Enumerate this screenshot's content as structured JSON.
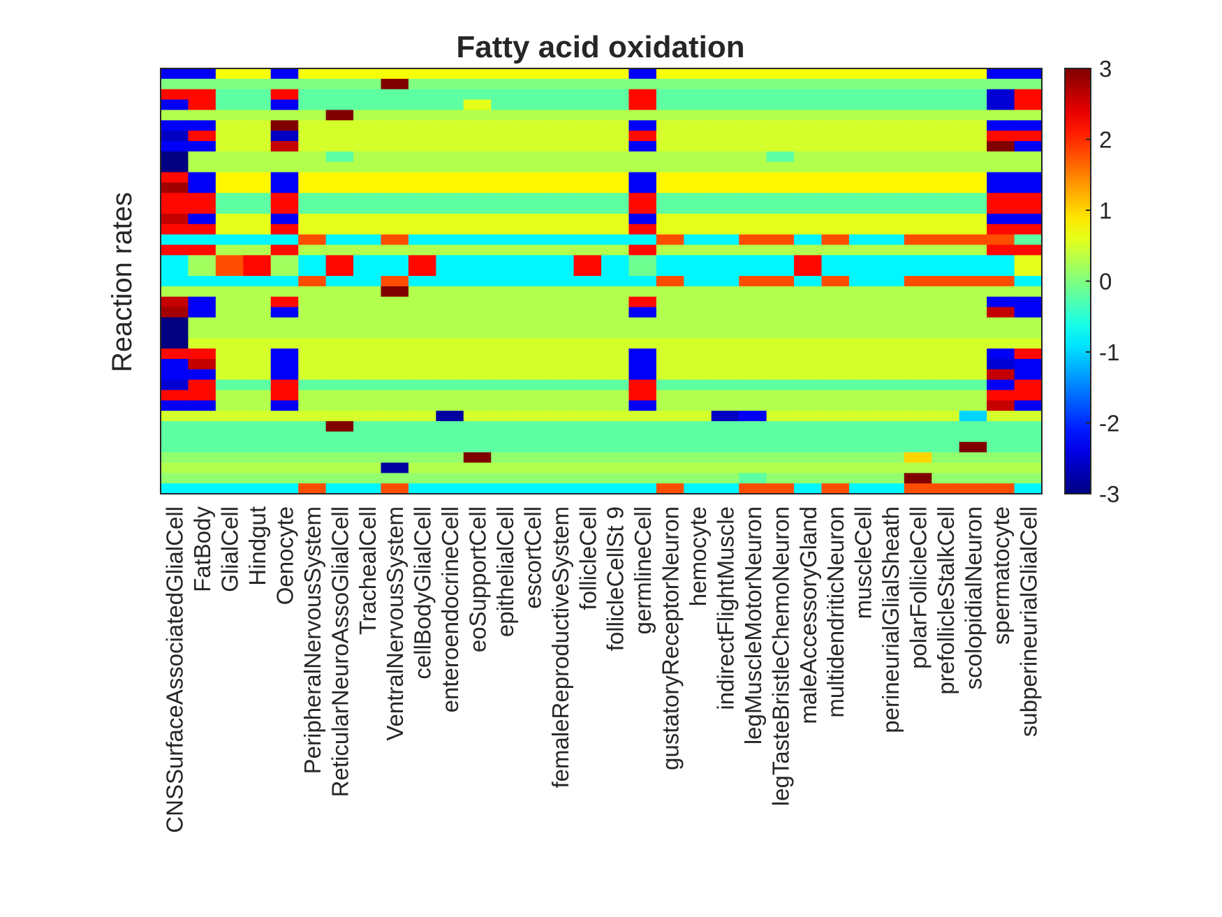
{
  "chart_data": {
    "type": "heatmap",
    "title": "Fatty acid oxidation",
    "ylabel": "Reaction rates",
    "xlabel": "",
    "columns": [
      "CNSSurfaceAssociatedGlialCell",
      "FatBody",
      "GlialCell",
      "Hindgut",
      "Oenocyte",
      "PeripheralNervousSystem",
      "ReticularNeuroAssoGlialCell",
      "TrachealCell",
      "VentralNervousSystem",
      "cellBodyGlialCell",
      "enteroendocrineCell",
      "eoSupportCell",
      "epithelialCell",
      "escortCell",
      "femaleReproductiveSystem",
      "follicleCell",
      "follicleCellSt 9",
      "germlineCell",
      "gustatoryReceptorNeuron",
      "hemocyte",
      "indirectFlightMuscle",
      "legMuscleMotorNeuron",
      "legTasteBristleChemoNeuron",
      "maleAccessoryGland",
      "multidendriticNeuron",
      "muscleCell",
      "perineurialGlialSheath",
      "polarFollicleCell",
      "prefollicleStalkCell",
      "scolopidialNeuron",
      "spermatocyte",
      "subperineurialGlialCell"
    ],
    "colorbar": {
      "min": -3,
      "max": 3,
      "ticks": [
        3,
        2,
        1,
        0,
        -1,
        -2,
        -3
      ],
      "colormap": "jet"
    },
    "grid": false,
    "rows": [
      {
        "base": 0.7,
        "ov": {
          "0": -2.3,
          "1": -2.3,
          "4": -2.3,
          "17": -2.3,
          "30": -2.3,
          "31": -2.3
        }
      },
      {
        "base": 0,
        "ov": {
          "8": 3.0
        }
      },
      {
        "base": -0.2,
        "ov": {
          "0": 2.2,
          "1": 2.2,
          "4": 2.2,
          "17": 2.2,
          "30": -2.5,
          "31": 2.2
        }
      },
      {
        "base": -0.2,
        "ov": {
          "0": -2.3,
          "1": 2.2,
          "4": -2.3,
          "11": 0.6,
          "17": 2.2,
          "30": -2.5,
          "31": 2.2
        }
      },
      {
        "base": 0.3,
        "ov": {
          "6": 3.0
        }
      },
      {
        "base": 0.5,
        "ov": {
          "0": -2.3,
          "1": -2.3,
          "4": 3.0,
          "17": -2.3,
          "30": -2.3,
          "31": -2.3
        }
      },
      {
        "base": 0.5,
        "ov": {
          "0": -2.6,
          "1": 2.2,
          "4": -2.6,
          "17": 2.2,
          "30": 2.2,
          "31": 2.2
        }
      },
      {
        "base": 0.5,
        "ov": {
          "0": -2.3,
          "1": -2.3,
          "4": 2.6,
          "17": -2.3,
          "30": 3.0,
          "31": -2.3
        }
      },
      {
        "base": 0.3,
        "ov": {
          "0": -3.0,
          "6": -0.2,
          "22": -0.2
        }
      },
      {
        "base": 0.3,
        "ov": {
          "0": -3.0
        }
      },
      {
        "base": 0.8,
        "ov": {
          "0": 2.2,
          "1": -2.3,
          "4": -2.3,
          "17": -2.3,
          "30": -2.3,
          "31": -2.3
        }
      },
      {
        "base": 0.8,
        "ov": {
          "0": 2.8,
          "1": -2.3,
          "4": -2.3,
          "17": -2.3,
          "30": -2.3,
          "31": -2.3
        }
      },
      {
        "base": -0.2,
        "ov": {
          "0": 2.2,
          "1": 2.2,
          "4": 2.2,
          "17": 2.2,
          "30": 2.2,
          "31": 2.2
        }
      },
      {
        "base": -0.2,
        "ov": {
          "0": 2.2,
          "1": 2.2,
          "4": 2.2,
          "17": 2.2,
          "30": 2.2,
          "31": 2.2
        }
      },
      {
        "base": 0.6,
        "ov": {
          "0": 2.6,
          "1": -2.3,
          "4": -2.3,
          "17": -2.3,
          "30": -2.3,
          "31": -2.3
        }
      },
      {
        "base": 0.6,
        "ov": {
          "0": 2.2,
          "1": 2.2,
          "4": 2.2,
          "17": 2.2,
          "30": 2.2,
          "31": 2.2
        }
      },
      {
        "base": -0.8,
        "ov": {
          "5": 1.8,
          "8": 1.8,
          "18": 1.8,
          "21": 1.8,
          "22": 1.8,
          "24": 1.8,
          "27": 1.8,
          "28": 1.8,
          "29": 1.8,
          "30": 1.8,
          "31": -0.2
        }
      },
      {
        "base": 0.3,
        "ov": {
          "0": 2.2,
          "1": 2.2,
          "4": 2.2,
          "17": 2.2,
          "30": 2.2,
          "31": 2.2
        }
      },
      {
        "base": -0.8,
        "ov": {
          "1": 0.2,
          "2": 1.8,
          "3": 2.2,
          "4": 0.2,
          "6": 2.2,
          "9": 2.2,
          "15": 2.2,
          "17": -0.1,
          "23": 2.2,
          "31": 0.6
        }
      },
      {
        "base": -0.8,
        "ov": {
          "1": 0.2,
          "2": 1.8,
          "3": 2.2,
          "4": 0.2,
          "6": 2.2,
          "9": 2.2,
          "15": 2.2,
          "17": -0.1,
          "23": 2.2,
          "31": 0.6
        }
      },
      {
        "base": -0.8,
        "ov": {
          "5": 1.8,
          "8": 1.8,
          "18": 1.8,
          "21": 1.8,
          "22": 1.8,
          "24": 1.8,
          "27": 1.8,
          "28": 1.8,
          "29": 1.8,
          "30": 1.8,
          "31": -0.8
        }
      },
      {
        "base": 0.3,
        "ov": {
          "8": 3.0
        }
      },
      {
        "base": 0.3,
        "ov": {
          "0": 2.6,
          "1": -2.3,
          "4": 2.2,
          "17": 2.2,
          "30": -2.3,
          "31": -2.3
        }
      },
      {
        "base": 0.3,
        "ov": {
          "0": 2.8,
          "1": -2.3,
          "4": -2.3,
          "17": -2.3,
          "30": 2.6,
          "31": -2.3
        }
      },
      {
        "base": 0.3,
        "ov": {
          "0": -3.0
        }
      },
      {
        "base": 0.3,
        "ov": {
          "0": -3.0
        }
      },
      {
        "base": 0.5,
        "ov": {
          "0": -3.0
        }
      },
      {
        "base": 0.5,
        "ov": {
          "0": 2.2,
          "1": 2.2,
          "4": -2.3,
          "17": -2.3,
          "30": -2.3,
          "31": 2.2
        }
      },
      {
        "base": 0.5,
        "ov": {
          "0": -2.3,
          "1": 2.6,
          "4": -2.3,
          "17": -2.3,
          "30": -2.5,
          "31": -2.3
        }
      },
      {
        "base": 0.5,
        "ov": {
          "0": -2.3,
          "1": -2.3,
          "4": -2.3,
          "17": -2.3,
          "30": 2.6,
          "31": -2.3
        }
      },
      {
        "base": -0.2,
        "ov": {
          "0": -2.5,
          "1": 2.2,
          "4": 2.2,
          "17": 2.2,
          "30": -2.3,
          "31": 2.2
        }
      },
      {
        "base": 0.3,
        "ov": {
          "0": 2.2,
          "1": 2.2,
          "4": 2.2,
          "17": 2.2,
          "30": 2.2,
          "31": 2.2
        }
      },
      {
        "base": 0.3,
        "ov": {
          "0": -2.3,
          "1": -2.3,
          "4": -2.3,
          "17": -2.3,
          "30": 2.6,
          "31": -2.3
        }
      },
      {
        "base": 0.5,
        "ov": {
          "10": -2.8,
          "20": -2.6,
          "21": -2.3,
          "29": -1.0
        }
      },
      {
        "base": -0.2,
        "ov": {
          "6": 3.0
        }
      },
      {
        "base": -0.2,
        "ov": {}
      },
      {
        "base": -0.2,
        "ov": {
          "29": 3.0
        }
      },
      {
        "base": 0.1,
        "ov": {
          "11": 3.0,
          "27": 1.0
        }
      },
      {
        "base": 0.3,
        "ov": {
          "8": -2.8
        }
      },
      {
        "base": 0.1,
        "ov": {
          "21": -0.2,
          "22": 0.1,
          "27": 3.0
        }
      },
      {
        "base": -0.8,
        "ov": {
          "5": 1.8,
          "8": 1.8,
          "18": 1.8,
          "21": 1.8,
          "22": 1.8,
          "24": 1.8,
          "27": 1.8,
          "28": 1.8,
          "29": 1.8,
          "30": 1.8
        }
      }
    ]
  }
}
